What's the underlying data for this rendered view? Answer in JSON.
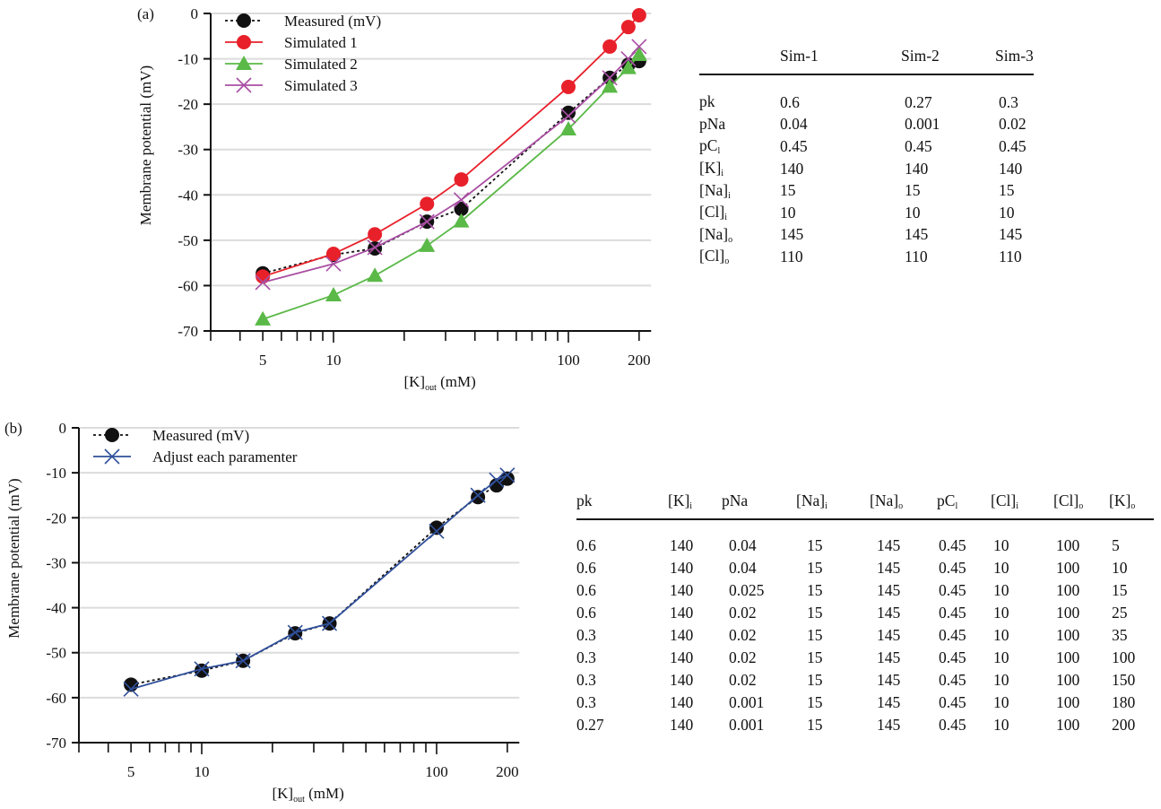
{
  "chart_data": [
    {
      "type": "line",
      "panel_label": "(a)",
      "xlabel": {
        "base": "[K]",
        "sub": "out",
        "rest": " (mM)"
      },
      "ylabel": "Membrane potential (mV)",
      "x_scale": "log",
      "xlim": [
        3,
        225
      ],
      "ylim": [
        -70,
        0
      ],
      "x_tick_labels": [
        5,
        10,
        100,
        200
      ],
      "y_ticks": [
        0,
        -10,
        -20,
        -30,
        -40,
        -50,
        -60,
        -70
      ],
      "grid": "horizontal",
      "legend_position": "top-left",
      "x": [
        5,
        10,
        15,
        25,
        35,
        100,
        150,
        180,
        200
      ],
      "series": [
        {
          "name": "Measured (mV)",
          "color": "#111111",
          "marker": "circle",
          "line": "dotted",
          "values": [
            -57.3,
            -53.2,
            -51.8,
            -45.9,
            -43.1,
            -21.9,
            -14.2,
            -11.3,
            -10.5
          ]
        },
        {
          "name": "Simulated 1",
          "color": "#e8202a",
          "marker": "circle",
          "line": "solid",
          "values": [
            -58.0,
            -53.0,
            -48.7,
            -42.0,
            -36.6,
            -16.2,
            -7.3,
            -3.0,
            -0.4
          ]
        },
        {
          "name": "Simulated 2",
          "color": "#5ab947",
          "marker": "triangle",
          "line": "solid",
          "values": [
            -67.4,
            -62.1,
            -57.8,
            -51.2,
            -45.8,
            -25.5,
            -16.1,
            -12.0,
            -9.1
          ]
        },
        {
          "name": "Simulated 3",
          "color": "#a94fa3",
          "marker": "x",
          "line": "solid",
          "values": [
            -59.3,
            -55.2,
            -51.6,
            -45.9,
            -41.1,
            -22.6,
            -14.2,
            -10.0,
            -7.3
          ]
        }
      ]
    },
    {
      "type": "line",
      "panel_label": "(b)",
      "xlabel": {
        "base": "[K]",
        "sub": "out",
        "rest": " (mM)"
      },
      "ylabel": "Membrane potential (mV)",
      "x_scale": "log",
      "xlim": [
        3,
        225
      ],
      "ylim": [
        -70,
        0
      ],
      "x_tick_labels": [
        5,
        10,
        100,
        200
      ],
      "y_ticks": [
        0,
        -10,
        -20,
        -30,
        -40,
        -50,
        -60,
        -70
      ],
      "grid": "horizontal",
      "legend_position": "top-left",
      "x": [
        5,
        10,
        15,
        25,
        35,
        100,
        150,
        180,
        200
      ],
      "series": [
        {
          "name": "Measured (mV)",
          "color": "#111111",
          "marker": "circle",
          "line": "dotted",
          "values": [
            -57.1,
            -54.0,
            -51.8,
            -45.7,
            -43.5,
            -22.2,
            -15.4,
            -12.8,
            -11.3
          ]
        },
        {
          "name": "Adjust each paramenter",
          "color": "#2f4f9a",
          "marker": "x",
          "line": "solid",
          "values": [
            -58.1,
            -53.6,
            -51.8,
            -45.5,
            -43.5,
            -23.0,
            -15.0,
            -11.6,
            -10.5
          ]
        }
      ]
    }
  ],
  "table_a": {
    "headers": [
      "",
      "Sim-1",
      "Sim-2",
      "Sim-3"
    ],
    "rows": [
      {
        "label": {
          "base": "pk",
          "sub": ""
        },
        "values": [
          "0.6",
          "0.27",
          "0.3"
        ]
      },
      {
        "label": {
          "base": "pNa",
          "sub": ""
        },
        "values": [
          "0.04",
          "0.001",
          "0.02"
        ]
      },
      {
        "label": {
          "base": "pC",
          "sub": "l"
        },
        "values": [
          "0.45",
          "0.45",
          "0.45"
        ]
      },
      {
        "label": {
          "base": "[K]",
          "sub": "i"
        },
        "values": [
          "140",
          "140",
          "140"
        ]
      },
      {
        "label": {
          "base": "[Na]",
          "sub": "i"
        },
        "values": [
          "15",
          "15",
          "15"
        ]
      },
      {
        "label": {
          "base": "[Cl]",
          "sub": "i"
        },
        "values": [
          "10",
          "10",
          "10"
        ]
      },
      {
        "label": {
          "base": "[Na]",
          "sub": "o"
        },
        "values": [
          "145",
          "145",
          "145"
        ]
      },
      {
        "label": {
          "base": "[Cl]",
          "sub": "o"
        },
        "values": [
          "110",
          "110",
          "110"
        ]
      }
    ]
  },
  "table_b": {
    "headers": [
      {
        "base": "pk",
        "sub": ""
      },
      {
        "base": "[K]",
        "sub": "i"
      },
      {
        "base": "pNa",
        "sub": ""
      },
      {
        "base": "[Na]",
        "sub": "i"
      },
      {
        "base": "[Na]",
        "sub": "o"
      },
      {
        "base": "pC",
        "sub": "l"
      },
      {
        "base": "[Cl]",
        "sub": "i"
      },
      {
        "base": "[Cl]",
        "sub": "o"
      },
      {
        "base": "[K]",
        "sub": "o"
      }
    ],
    "rows": [
      [
        "0.6",
        "140",
        "0.04",
        "15",
        "145",
        "0.45",
        "10",
        "100",
        "5"
      ],
      [
        "0.6",
        "140",
        "0.04",
        "15",
        "145",
        "0.45",
        "10",
        "100",
        "10"
      ],
      [
        "0.6",
        "140",
        "0.025",
        "15",
        "145",
        "0.45",
        "10",
        "100",
        "15"
      ],
      [
        "0.6",
        "140",
        "0.02",
        "15",
        "145",
        "0.45",
        "10",
        "100",
        "25"
      ],
      [
        "0.3",
        "140",
        "0.02",
        "15",
        "145",
        "0.45",
        "10",
        "100",
        "35"
      ],
      [
        "0.3",
        "140",
        "0.02",
        "15",
        "145",
        "0.45",
        "10",
        "100",
        "100"
      ],
      [
        "0.3",
        "140",
        "0.02",
        "15",
        "145",
        "0.45",
        "10",
        "100",
        "150"
      ],
      [
        "0.3",
        "140",
        "0.001",
        "15",
        "145",
        "0.45",
        "10",
        "100",
        "180"
      ],
      [
        "0.27",
        "140",
        "0.001",
        "15",
        "145",
        "0.45",
        "10",
        "100",
        "200"
      ]
    ]
  }
}
